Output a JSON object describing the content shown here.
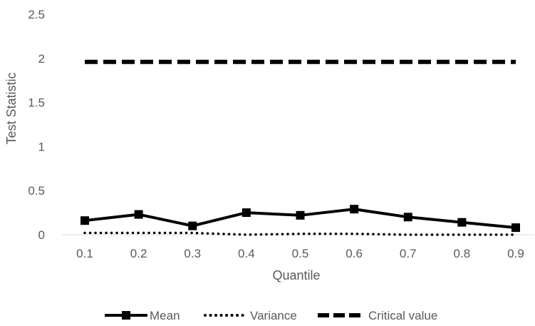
{
  "chart_data": {
    "type": "line",
    "title": "",
    "xlabel": "Quantile",
    "ylabel": "Test Statistic",
    "categories": [
      "0.1",
      "0.2",
      "0.3",
      "0.4",
      "0.5",
      "0.6",
      "0.7",
      "0.8",
      "0.9"
    ],
    "y_ticks": [
      "0",
      "0.5",
      "1",
      "1.5",
      "2",
      "2.5"
    ],
    "ylim": [
      0,
      2.5
    ],
    "grid": false,
    "legend_position": "bottom",
    "series": [
      {
        "name": "Mean",
        "style": "solid-square-markers",
        "color": "#000000",
        "values": [
          0.16,
          0.23,
          0.1,
          0.25,
          0.22,
          0.29,
          0.2,
          0.14,
          0.08
        ]
      },
      {
        "name": "Variance",
        "style": "dotted",
        "color": "#000000",
        "values": [
          0.02,
          0.02,
          0.02,
          0.0,
          0.01,
          0.01,
          0.0,
          0.0,
          0.0
        ]
      },
      {
        "name": "Critical value",
        "style": "dashed",
        "color": "#000000",
        "values": [
          1.96,
          1.96,
          1.96,
          1.96,
          1.96,
          1.96,
          1.96,
          1.96,
          1.96
        ]
      }
    ]
  }
}
